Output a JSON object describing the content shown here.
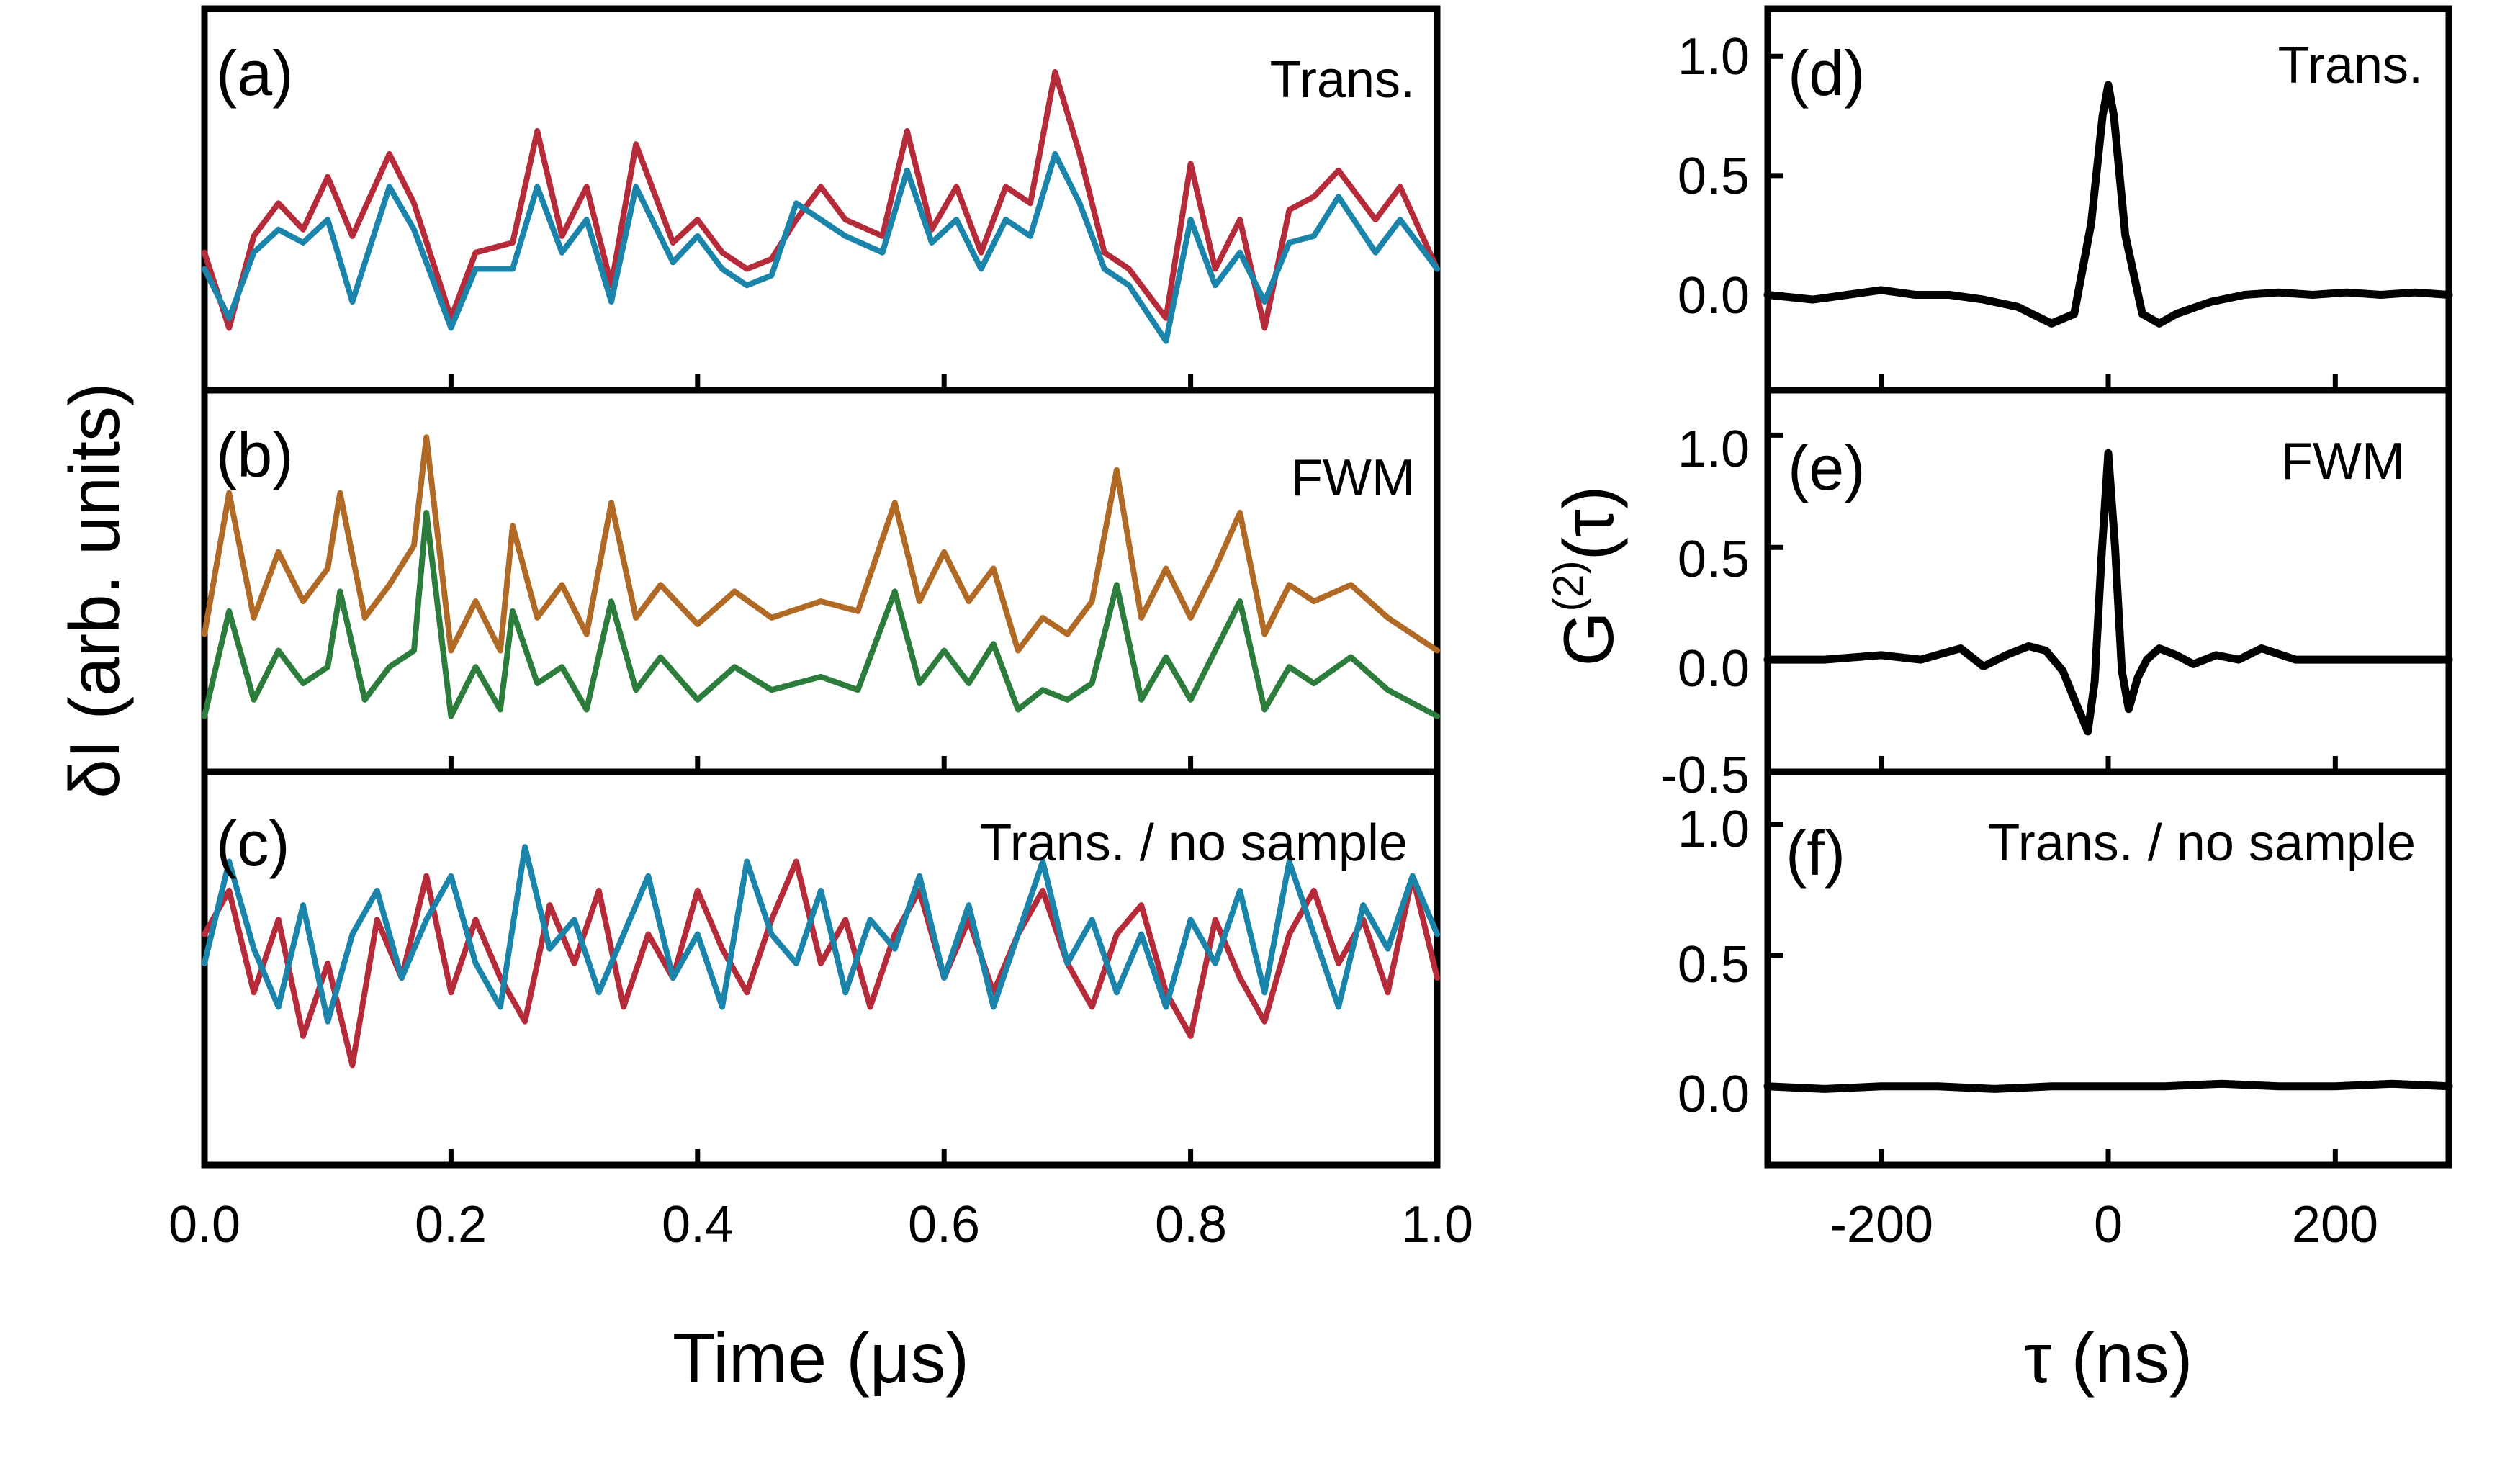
{
  "chart_data": [
    {
      "type": "line",
      "panel": "a",
      "label": "(a)",
      "annotation": "Trans.",
      "xlabel": "Time (μs)",
      "ylabel": "δI (arb. units)",
      "xlim": [
        0,
        1.0
      ],
      "xticks": [
        "0.0",
        "0.2",
        "0.4",
        "0.6",
        "0.8",
        "1.0"
      ],
      "series": [
        {
          "name": "trace-1",
          "color": "#b52b3a",
          "x": [
            0,
            0.02,
            0.04,
            0.06,
            0.08,
            0.1,
            0.12,
            0.15,
            0.17,
            0.2,
            0.22,
            0.25,
            0.27,
            0.29,
            0.31,
            0.33,
            0.35,
            0.38,
            0.4,
            0.42,
            0.44,
            0.46,
            0.48,
            0.5,
            0.52,
            0.55,
            0.57,
            0.59,
            0.61,
            0.63,
            0.65,
            0.67,
            0.69,
            0.71,
            0.73,
            0.75,
            0.78,
            0.8,
            0.82,
            0.84,
            0.86,
            0.88,
            0.9,
            0.92,
            0.95,
            0.97,
            1.0
          ],
          "y": [
            0.35,
            0.12,
            0.4,
            0.5,
            0.42,
            0.58,
            0.4,
            0.65,
            0.5,
            0.15,
            0.35,
            0.38,
            0.72,
            0.4,
            0.55,
            0.25,
            0.68,
            0.38,
            0.45,
            0.35,
            0.3,
            0.33,
            0.45,
            0.55,
            0.45,
            0.4,
            0.72,
            0.42,
            0.55,
            0.35,
            0.55,
            0.5,
            0.9,
            0.65,
            0.35,
            0.3,
            0.15,
            0.62,
            0.3,
            0.45,
            0.12,
            0.48,
            0.52,
            0.6,
            0.45,
            0.55,
            0.3
          ]
        },
        {
          "name": "trace-2",
          "color": "#1a84aa",
          "x": [
            0,
            0.02,
            0.04,
            0.06,
            0.08,
            0.1,
            0.12,
            0.15,
            0.17,
            0.2,
            0.22,
            0.25,
            0.27,
            0.29,
            0.31,
            0.33,
            0.35,
            0.38,
            0.4,
            0.42,
            0.44,
            0.46,
            0.48,
            0.5,
            0.52,
            0.55,
            0.57,
            0.59,
            0.61,
            0.63,
            0.65,
            0.67,
            0.69,
            0.71,
            0.73,
            0.75,
            0.78,
            0.8,
            0.82,
            0.84,
            0.86,
            0.88,
            0.9,
            0.92,
            0.95,
            0.97,
            1.0
          ],
          "y": [
            0.3,
            0.15,
            0.35,
            0.42,
            0.38,
            0.45,
            0.2,
            0.55,
            0.42,
            0.12,
            0.3,
            0.3,
            0.55,
            0.35,
            0.45,
            0.2,
            0.55,
            0.32,
            0.4,
            0.3,
            0.25,
            0.28,
            0.5,
            0.45,
            0.4,
            0.35,
            0.6,
            0.38,
            0.45,
            0.3,
            0.45,
            0.4,
            0.65,
            0.5,
            0.3,
            0.25,
            0.08,
            0.45,
            0.25,
            0.35,
            0.2,
            0.38,
            0.4,
            0.52,
            0.35,
            0.45,
            0.3
          ]
        }
      ]
    },
    {
      "type": "line",
      "panel": "b",
      "label": "(b)",
      "annotation": "FWM",
      "xlim": [
        0,
        1.0
      ],
      "series": [
        {
          "name": "trace-1",
          "color": "#b06a25",
          "x": [
            0,
            0.02,
            0.04,
            0.06,
            0.08,
            0.1,
            0.11,
            0.13,
            0.15,
            0.17,
            0.18,
            0.2,
            0.22,
            0.24,
            0.25,
            0.27,
            0.29,
            0.31,
            0.33,
            0.35,
            0.37,
            0.4,
            0.43,
            0.46,
            0.5,
            0.53,
            0.56,
            0.58,
            0.6,
            0.62,
            0.64,
            0.66,
            0.68,
            0.7,
            0.72,
            0.74,
            0.76,
            0.78,
            0.8,
            0.82,
            0.84,
            0.86,
            0.88,
            0.9,
            0.93,
            0.96,
            1.0
          ],
          "y": [
            0.35,
            0.78,
            0.4,
            0.6,
            0.45,
            0.55,
            0.78,
            0.4,
            0.5,
            0.62,
            0.95,
            0.3,
            0.45,
            0.3,
            0.68,
            0.4,
            0.5,
            0.35,
            0.75,
            0.4,
            0.5,
            0.38,
            0.48,
            0.4,
            0.45,
            0.42,
            0.75,
            0.45,
            0.6,
            0.45,
            0.55,
            0.3,
            0.4,
            0.35,
            0.45,
            0.85,
            0.4,
            0.55,
            0.4,
            0.55,
            0.72,
            0.35,
            0.5,
            0.45,
            0.5,
            0.4,
            0.3
          ]
        },
        {
          "name": "trace-2",
          "color": "#2c7d3c",
          "x": [
            0,
            0.02,
            0.04,
            0.06,
            0.08,
            0.1,
            0.11,
            0.13,
            0.15,
            0.17,
            0.18,
            0.2,
            0.22,
            0.24,
            0.25,
            0.27,
            0.29,
            0.31,
            0.33,
            0.35,
            0.37,
            0.4,
            0.43,
            0.46,
            0.5,
            0.53,
            0.56,
            0.58,
            0.6,
            0.62,
            0.64,
            0.66,
            0.68,
            0.7,
            0.72,
            0.74,
            0.76,
            0.78,
            0.8,
            0.82,
            0.84,
            0.86,
            0.88,
            0.9,
            0.93,
            0.96,
            1.0
          ],
          "y": [
            0.1,
            0.42,
            0.15,
            0.3,
            0.2,
            0.25,
            0.48,
            0.15,
            0.25,
            0.3,
            0.72,
            0.1,
            0.25,
            0.12,
            0.42,
            0.2,
            0.25,
            0.12,
            0.45,
            0.18,
            0.28,
            0.15,
            0.25,
            0.18,
            0.22,
            0.18,
            0.48,
            0.2,
            0.3,
            0.2,
            0.32,
            0.12,
            0.18,
            0.15,
            0.2,
            0.5,
            0.15,
            0.28,
            0.15,
            0.3,
            0.45,
            0.12,
            0.25,
            0.2,
            0.28,
            0.18,
            0.1
          ]
        }
      ]
    },
    {
      "type": "line",
      "panel": "c",
      "label": "(c)",
      "annotation": "Trans. / no sample",
      "xlim": [
        0,
        1.0
      ],
      "series": [
        {
          "name": "trace-1",
          "color": "#b52b3a",
          "x": [
            0,
            0.02,
            0.04,
            0.06,
            0.08,
            0.1,
            0.12,
            0.14,
            0.16,
            0.18,
            0.2,
            0.22,
            0.24,
            0.26,
            0.28,
            0.3,
            0.32,
            0.34,
            0.36,
            0.38,
            0.4,
            0.42,
            0.44,
            0.46,
            0.48,
            0.5,
            0.52,
            0.54,
            0.56,
            0.58,
            0.6,
            0.62,
            0.64,
            0.66,
            0.68,
            0.7,
            0.72,
            0.74,
            0.76,
            0.78,
            0.8,
            0.82,
            0.84,
            0.86,
            0.88,
            0.9,
            0.92,
            0.94,
            0.96,
            0.98,
            1.0
          ],
          "y": [
            0.55,
            0.7,
            0.35,
            0.6,
            0.2,
            0.45,
            0.1,
            0.6,
            0.4,
            0.75,
            0.35,
            0.6,
            0.4,
            0.25,
            0.65,
            0.45,
            0.7,
            0.3,
            0.55,
            0.4,
            0.7,
            0.5,
            0.35,
            0.6,
            0.8,
            0.45,
            0.6,
            0.3,
            0.55,
            0.7,
            0.4,
            0.6,
            0.35,
            0.55,
            0.7,
            0.45,
            0.3,
            0.55,
            0.65,
            0.35,
            0.2,
            0.6,
            0.4,
            0.25,
            0.55,
            0.7,
            0.45,
            0.6,
            0.35,
            0.75,
            0.4
          ]
        },
        {
          "name": "trace-2",
          "color": "#1a84aa",
          "x": [
            0,
            0.02,
            0.04,
            0.06,
            0.08,
            0.1,
            0.12,
            0.14,
            0.16,
            0.18,
            0.2,
            0.22,
            0.24,
            0.26,
            0.28,
            0.3,
            0.32,
            0.34,
            0.36,
            0.38,
            0.4,
            0.42,
            0.44,
            0.46,
            0.48,
            0.5,
            0.52,
            0.54,
            0.56,
            0.58,
            0.6,
            0.62,
            0.64,
            0.66,
            0.68,
            0.7,
            0.72,
            0.74,
            0.76,
            0.78,
            0.8,
            0.82,
            0.84,
            0.86,
            0.88,
            0.9,
            0.92,
            0.94,
            0.96,
            0.98,
            1.0
          ],
          "y": [
            0.45,
            0.8,
            0.5,
            0.3,
            0.65,
            0.25,
            0.55,
            0.7,
            0.4,
            0.6,
            0.75,
            0.45,
            0.3,
            0.85,
            0.5,
            0.6,
            0.35,
            0.55,
            0.75,
            0.4,
            0.55,
            0.3,
            0.8,
            0.55,
            0.45,
            0.7,
            0.35,
            0.6,
            0.5,
            0.75,
            0.4,
            0.65,
            0.3,
            0.55,
            0.8,
            0.45,
            0.6,
            0.35,
            0.55,
            0.3,
            0.6,
            0.45,
            0.7,
            0.35,
            0.8,
            0.55,
            0.3,
            0.65,
            0.5,
            0.75,
            0.55
          ]
        }
      ]
    },
    {
      "type": "line",
      "panel": "d",
      "label": "(d)",
      "annotation": "Trans.",
      "xlim": [
        -300,
        300
      ],
      "ylim": [
        -0.4,
        1.2
      ],
      "yticks": [
        "0.0",
        "0.5",
        "1.0"
      ],
      "series": [
        {
          "name": "G2",
          "color": "#000000",
          "x": [
            -300,
            -260,
            -230,
            -200,
            -170,
            -140,
            -110,
            -80,
            -50,
            -30,
            -15,
            -5,
            0,
            5,
            15,
            30,
            45,
            60,
            90,
            120,
            150,
            180,
            210,
            240,
            270,
            300
          ],
          "y": [
            0.0,
            -0.02,
            0.0,
            0.02,
            0.0,
            0.0,
            -0.02,
            -0.05,
            -0.12,
            -0.08,
            0.3,
            0.75,
            0.88,
            0.75,
            0.25,
            -0.08,
            -0.12,
            -0.08,
            -0.03,
            0.0,
            0.01,
            0.0,
            0.01,
            0.0,
            0.01,
            0.0
          ]
        }
      ]
    },
    {
      "type": "line",
      "panel": "e",
      "label": "(e)",
      "annotation": "FWM",
      "xlim": [
        -300,
        300
      ],
      "ylim": [
        -0.5,
        1.2
      ],
      "yticks": [
        "-0.5",
        "0.0",
        "0.5",
        "1.0"
      ],
      "ylabel": "G(2)(τ)",
      "series": [
        {
          "name": "G2",
          "color": "#000000",
          "x": [
            -300,
            -250,
            -200,
            -165,
            -130,
            -110,
            -90,
            -70,
            -55,
            -40,
            -28,
            -18,
            -12,
            -6,
            0,
            6,
            12,
            18,
            26,
            34,
            45,
            60,
            75,
            95,
            115,
            135,
            165,
            200,
            250,
            300
          ],
          "y": [
            0.0,
            0.0,
            0.02,
            0.0,
            0.05,
            -0.03,
            0.02,
            0.06,
            0.04,
            -0.05,
            -0.2,
            -0.32,
            -0.1,
            0.45,
            0.92,
            0.5,
            -0.05,
            -0.22,
            -0.08,
            0.0,
            0.05,
            0.02,
            -0.02,
            0.02,
            0.0,
            0.05,
            0.0,
            0.0,
            0.0,
            0.0
          ]
        }
      ]
    },
    {
      "type": "line",
      "panel": "f",
      "label": "(f)",
      "annotation": "Trans. / no sample",
      "xlim": [
        -300,
        300
      ],
      "ylim": [
        -0.3,
        1.2
      ],
      "xticks": [
        "-200",
        "0",
        "200"
      ],
      "yticks": [
        "0.0",
        "0.5",
        "1.0"
      ],
      "xlabel": "τ (ns)",
      "series": [
        {
          "name": "G2",
          "color": "#000000",
          "x": [
            -300,
            -250,
            -200,
            -150,
            -100,
            -50,
            0,
            50,
            100,
            150,
            200,
            250,
            300
          ],
          "y": [
            0.0,
            -0.01,
            0.0,
            0.0,
            -0.01,
            0.0,
            0.0,
            0.0,
            0.01,
            0.0,
            0.0,
            0.01,
            0.0
          ]
        }
      ]
    }
  ]
}
